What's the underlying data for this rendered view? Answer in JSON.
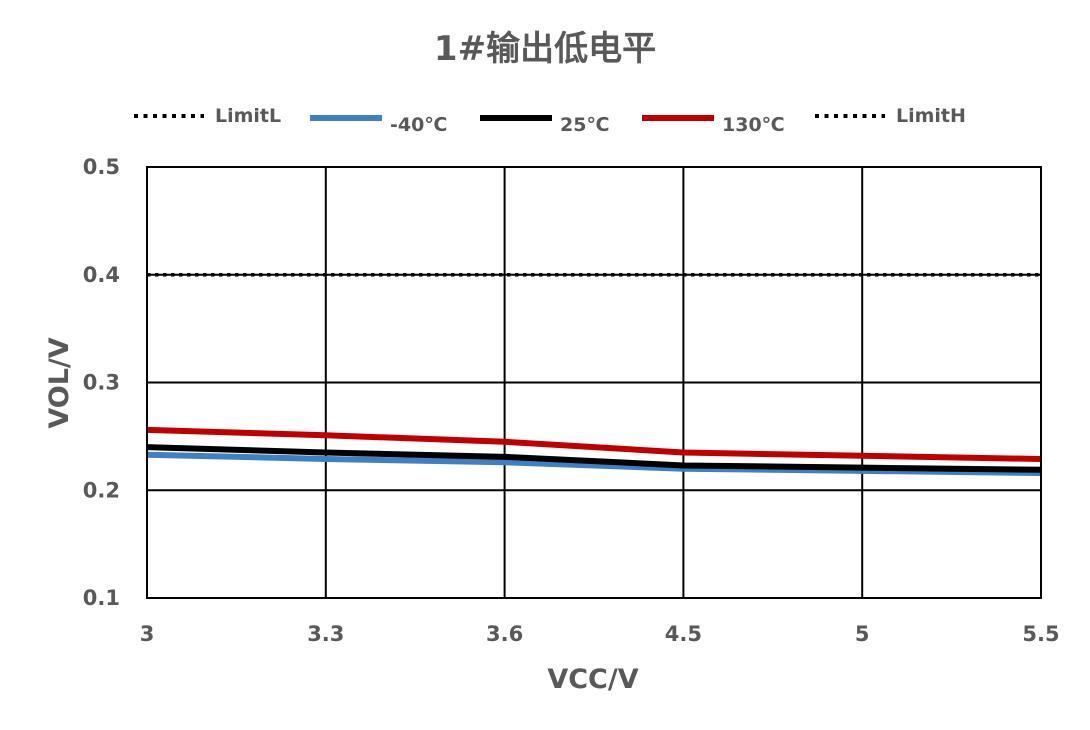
{
  "chart_data": {
    "type": "line",
    "title": "1#输出低电平",
    "xlabel": "VCC/V",
    "ylabel": "VOL/V",
    "categories": [
      "3",
      "3.3",
      "3.6",
      "4.5",
      "5",
      "5.5"
    ],
    "ylim": [
      0.1,
      0.5
    ],
    "yticks": [
      "0.1",
      "0.2",
      "0.3",
      "0.4",
      "0.5"
    ],
    "grid": true,
    "legend_position": "top",
    "series": [
      {
        "name": "LimitL",
        "values": [
          0.4,
          0.4,
          0.4,
          0.4,
          0.4,
          0.4
        ],
        "color": "#000000",
        "style": "dotted"
      },
      {
        "name": "-40℃",
        "values": [
          0.233,
          0.229,
          0.226,
          0.22,
          0.218,
          0.216
        ],
        "color": "#3f7fc3",
        "style": "solid"
      },
      {
        "name": "25℃",
        "values": [
          0.24,
          0.235,
          0.231,
          0.223,
          0.221,
          0.219
        ],
        "color": "#000000",
        "style": "solid"
      },
      {
        "name": "130℃",
        "values": [
          0.256,
          0.251,
          0.245,
          0.235,
          0.232,
          0.229
        ],
        "color": "#c00000",
        "style": "solid"
      },
      {
        "name": "LimitH",
        "values": [
          0.4,
          0.4,
          0.4,
          0.4,
          0.4,
          0.4
        ],
        "color": "#000000",
        "style": "dotted"
      }
    ]
  }
}
